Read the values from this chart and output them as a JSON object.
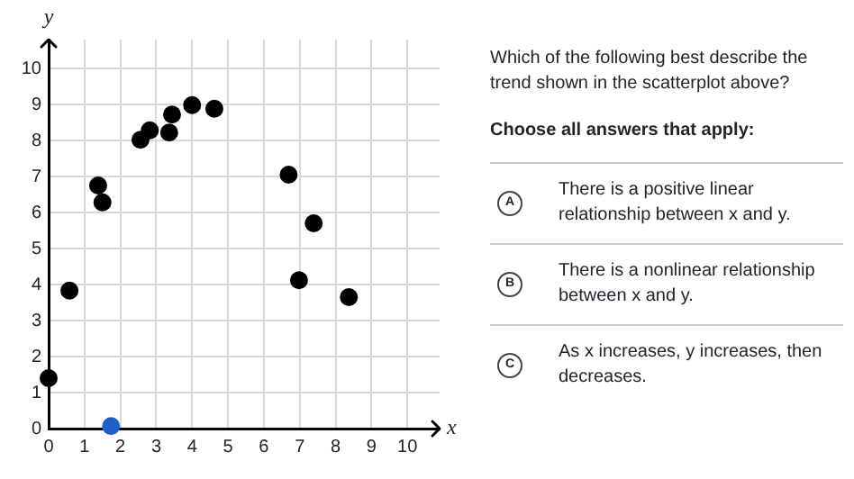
{
  "chart_data": {
    "type": "scatter",
    "xlabel": "x",
    "ylabel": "y",
    "xlim": [
      0,
      10.9
    ],
    "ylim": [
      0,
      10.8
    ],
    "xticks": [
      0,
      1,
      2,
      3,
      4,
      5,
      6,
      7,
      8,
      9,
      10
    ],
    "yticks": [
      0,
      1,
      2,
      3,
      4,
      5,
      6,
      7,
      8,
      9,
      10
    ],
    "grid": true,
    "marker": "circle",
    "series": [
      {
        "color": "#000000",
        "x": [
          0,
          0.58,
          1.38,
          1.5,
          2.56,
          2.82,
          3.36,
          3.44,
          4.0,
          4.62,
          6.69,
          6.98,
          7.39,
          8.37
        ],
        "values": [
          1.4,
          3.83,
          6.75,
          6.28,
          8.02,
          8.28,
          8.22,
          8.72,
          8.98,
          8.88,
          7.05,
          4.12,
          5.7,
          3.65
        ]
      },
      {
        "color": "#1f5fc8",
        "x": [
          1.74
        ],
        "values": [
          0.07
        ]
      }
    ],
    "annotations": [
      "Which of the following best describe the trend shown in the scatterplot above?",
      "Choose all answers that apply:",
      "A",
      "There is a positive linear relationship between x and y.",
      "B",
      "There is a nonlinear relationship between x and y.",
      "C",
      "As x increases, y increases, then decreases."
    ]
  }
}
